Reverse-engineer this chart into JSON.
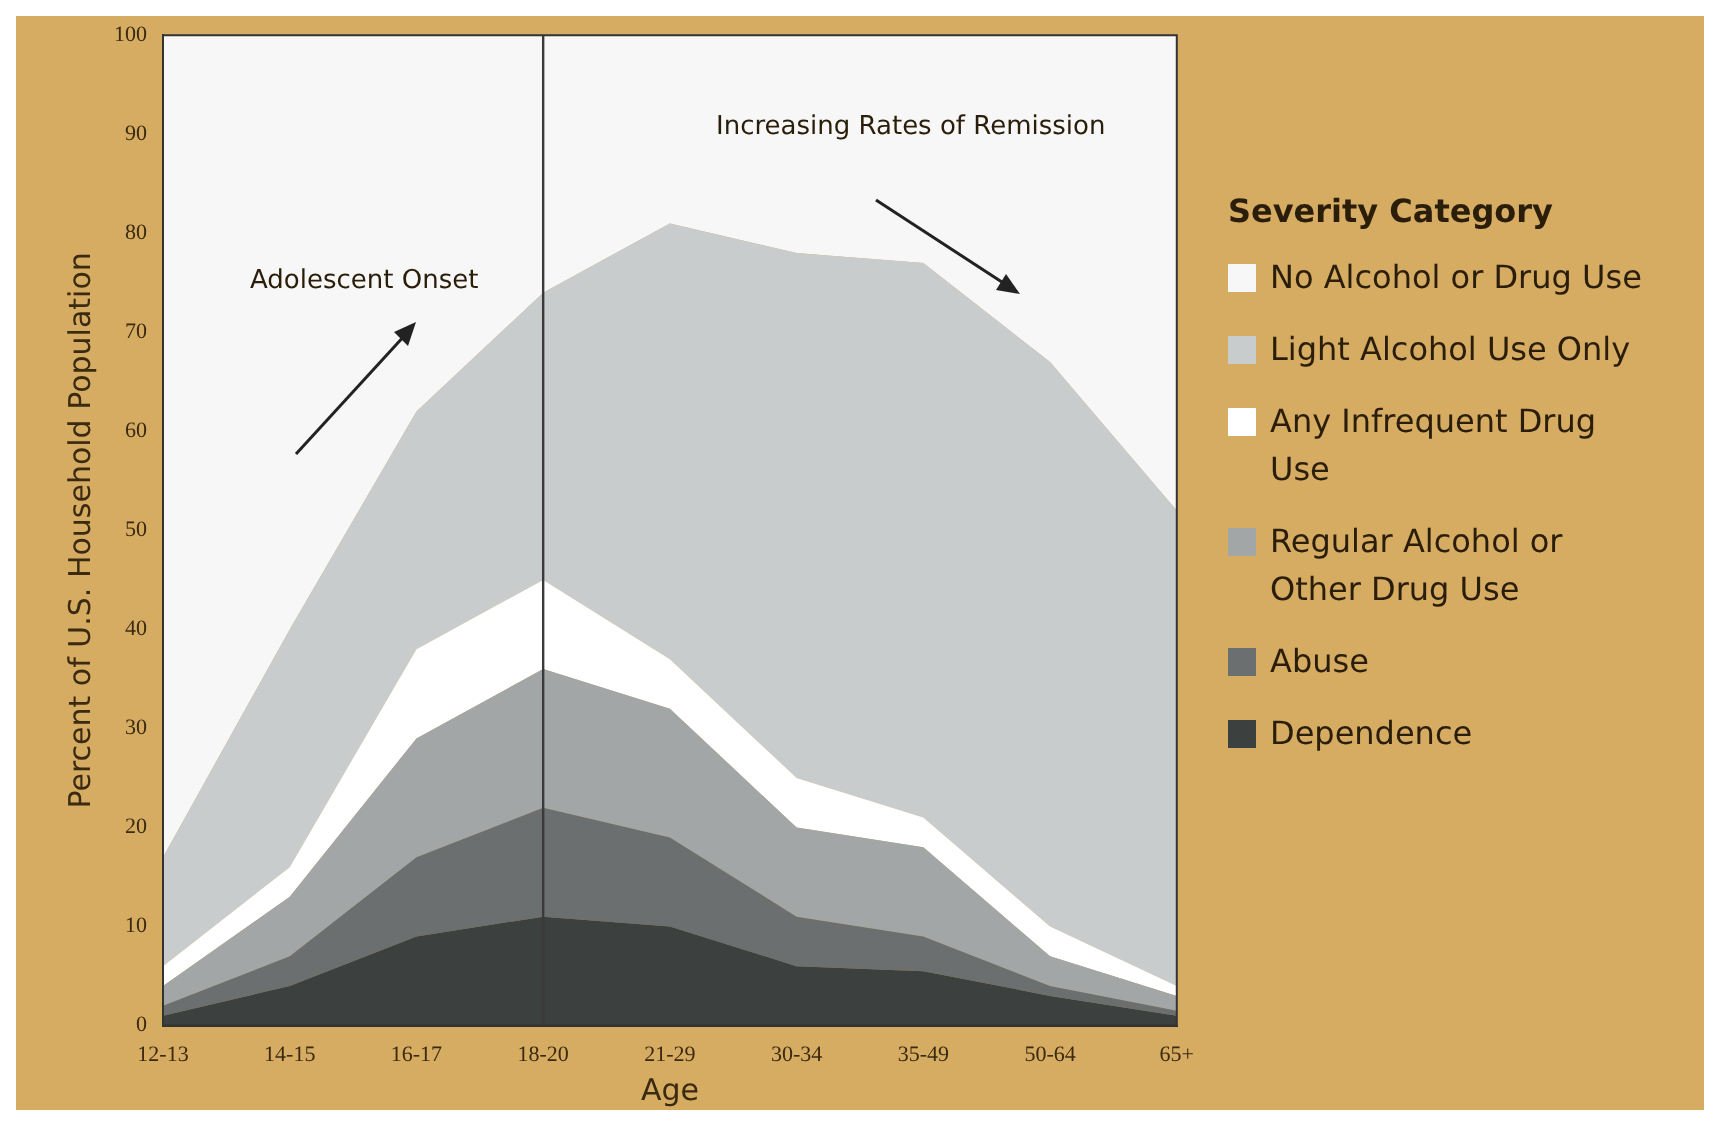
{
  "chart_data": {
    "type": "area",
    "stacked": true,
    "xlabel": "Age",
    "ylabel": "Percent of U.S. Household Population",
    "legend_title": "Severity Category",
    "legend": "right",
    "categories": [
      "12-13",
      "14-15",
      "16-17",
      "18-20",
      "21-29",
      "30-34",
      "35-49",
      "50-64",
      "65+"
    ],
    "ylim": [
      0,
      100
    ],
    "yticks": [
      0,
      10,
      20,
      30,
      40,
      50,
      60,
      70,
      80,
      90,
      100
    ],
    "ref_lines": [
      {
        "axis": "x",
        "value": "18-20",
        "color": "#3a3a3a"
      }
    ],
    "annotations": [
      "Adolescent Onset",
      "Increasing Rates of Remission"
    ],
    "series": [
      {
        "name": "Dependence",
        "color": "#3c403f",
        "values": [
          1,
          4,
          9,
          11,
          10,
          6,
          5.5,
          3,
          1
        ]
      },
      {
        "name": "Abuse",
        "color": "#6b6f6f",
        "values": [
          1,
          3,
          8,
          11,
          9,
          5,
          3.5,
          1,
          0.5
        ]
      },
      {
        "name": "Regular Alcohol or Other Drug Use",
        "color": "#a3a6a6",
        "values": [
          2,
          6,
          12,
          14,
          13,
          9,
          9,
          3,
          1.5
        ]
      },
      {
        "name": "Any Infrequent Drug Use",
        "color": "#ffffff",
        "values": [
          2,
          3,
          9,
          9,
          5,
          5,
          3,
          3,
          1
        ]
      },
      {
        "name": "Light Alcohol Use Only",
        "color": "#c9cccc",
        "values": [
          11,
          24,
          24,
          29,
          44,
          53,
          56,
          57,
          48
        ]
      },
      {
        "name": "No Alcohol or Drug Use",
        "color": "#f7f7f7",
        "values": [
          83,
          60,
          38,
          26,
          19,
          22,
          23,
          33,
          48
        ]
      }
    ]
  }
}
